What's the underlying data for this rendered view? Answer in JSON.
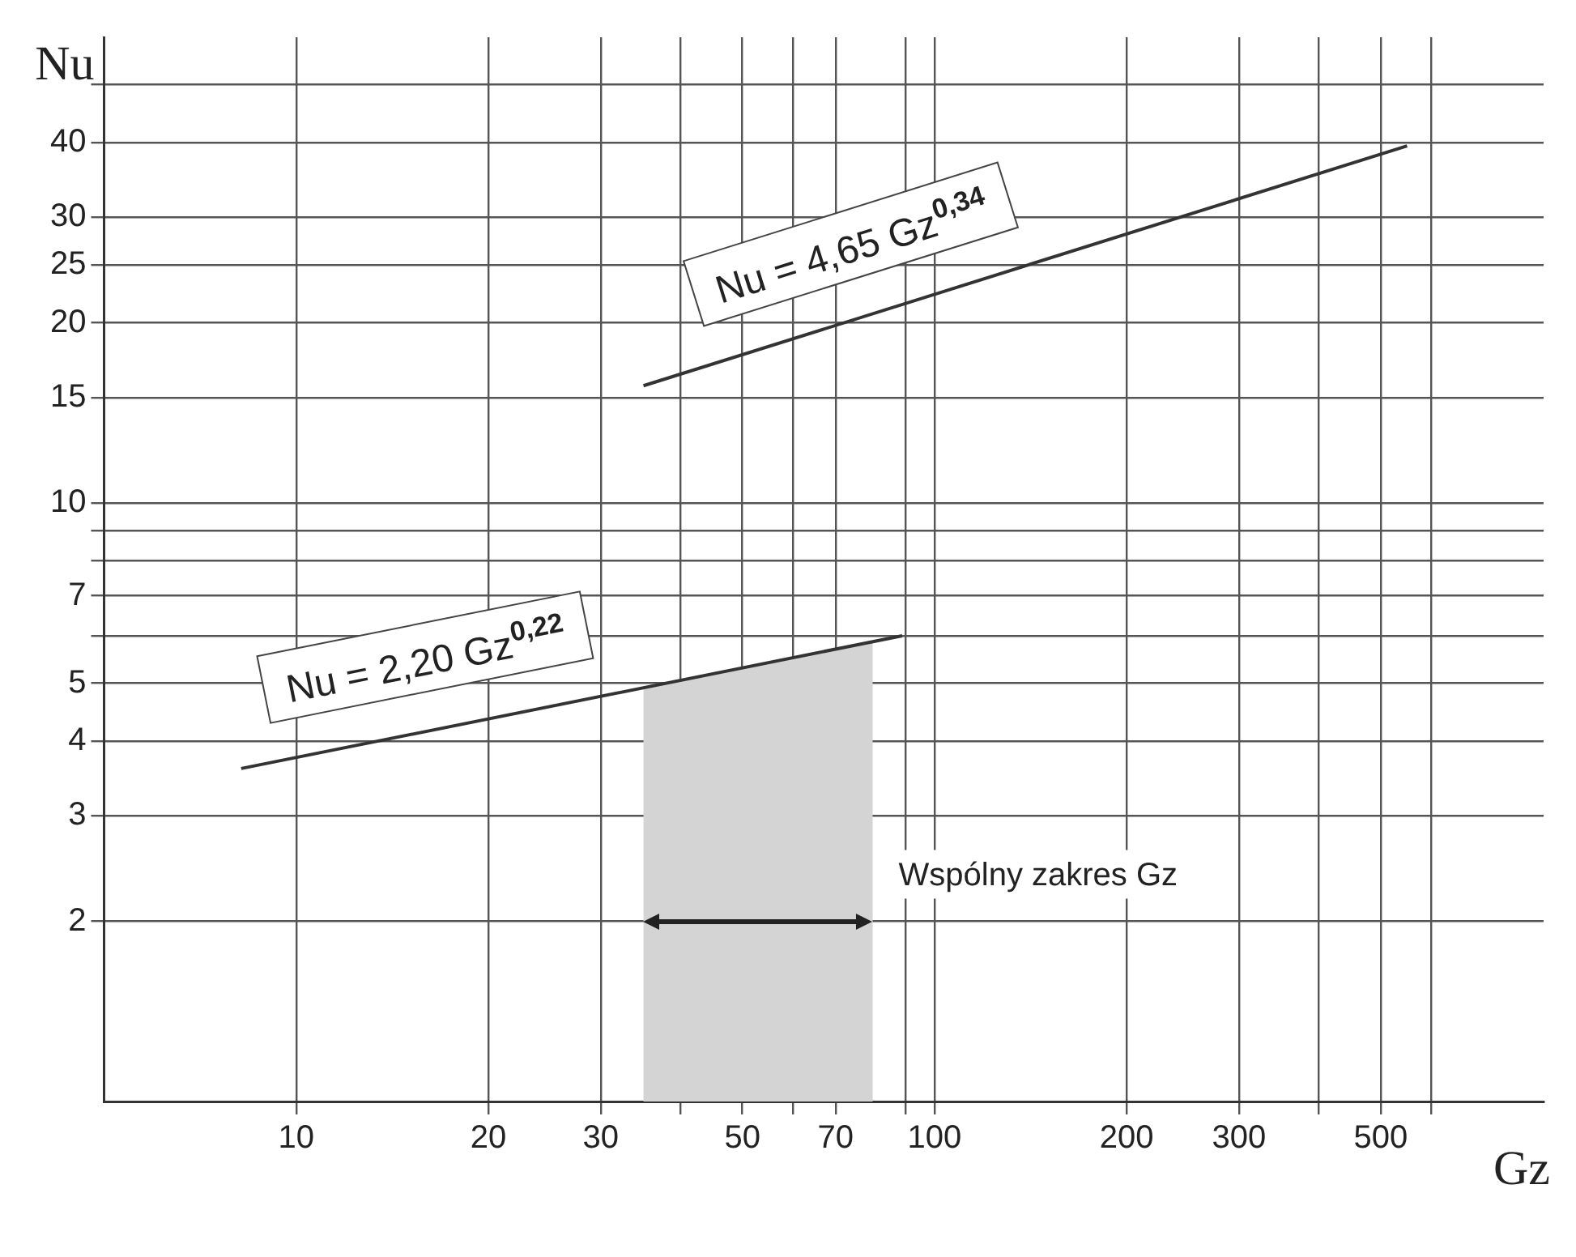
{
  "chart_data": {
    "type": "line",
    "xlabel": "Gz",
    "ylabel": "Nu",
    "log": "xy",
    "grid": true,
    "legend": false,
    "marker": "none",
    "line_style": "solid",
    "xlim": [
      5,
      900
    ],
    "ylim": [
      1,
      60
    ],
    "xticks": [
      10,
      20,
      30,
      {
        "value": 40,
        "label": null
      },
      50,
      {
        "value": 60,
        "label": null
      },
      70,
      {
        "value": 90,
        "label": null
      },
      100,
      200,
      300,
      {
        "value": 400,
        "label": null
      },
      500,
      {
        "value": 600,
        "label": null
      }
    ],
    "yticks": [
      2,
      3,
      4,
      5,
      {
        "value": 6,
        "label": null
      },
      7,
      {
        "value": 8,
        "label": null
      },
      {
        "value": 9,
        "label": null
      },
      10,
      15,
      20,
      25,
      30,
      40,
      {
        "value": 50,
        "label": null
      }
    ],
    "series": [
      {
        "color": "#333333",
        "x": [
          8.2,
          89
        ],
        "values": [
          3.6,
          6.0
        ]
      },
      {
        "color": "#333333",
        "x": [
          35,
          550
        ],
        "values": [
          15.7,
          39.5
        ]
      }
    ],
    "bands": [
      {
        "axis": "x",
        "from": 35,
        "to": 80,
        "color": "#d4d4d4"
      }
    ],
    "annotations": [
      "Nu = 2,20 Gz$^{0,22}$",
      "Nu = 4,65 Gz$^{0,34}$",
      {
        "text": "Wspólny zakres Gz",
        "x": 80,
        "y": 2
      }
    ]
  }
}
